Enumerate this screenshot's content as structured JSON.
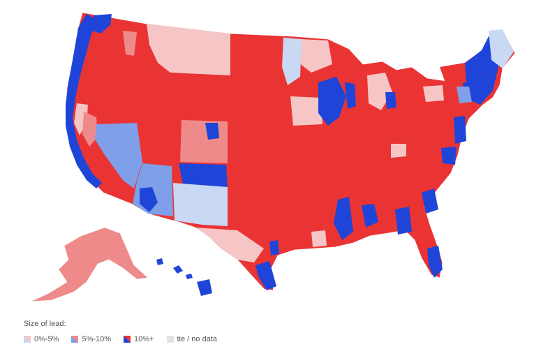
{
  "legend": {
    "title": "Size of lead:",
    "items": [
      {
        "label": "0%-5%",
        "color_a": "#c9d8f3",
        "color_b": "#f6c6c6"
      },
      {
        "label": "5%-10%",
        "color_a": "#7f9fe8",
        "color_b": "#ef8a8a"
      },
      {
        "label": "10%+",
        "color_a": "#1f45d8",
        "color_b": "#ea3434"
      },
      {
        "label": "tie / no data",
        "color_a": "#e3e3e3",
        "color_b": "#e3e3e3"
      }
    ]
  },
  "colors": {
    "red_strong": "#ea3434",
    "red_mid": "#ef8a8a",
    "red_light": "#f6c6c6",
    "blue_strong": "#1f45d8",
    "blue_mid": "#7f9fe8",
    "blue_light": "#c9d8f3",
    "no_data": "#e3e3e3"
  }
}
